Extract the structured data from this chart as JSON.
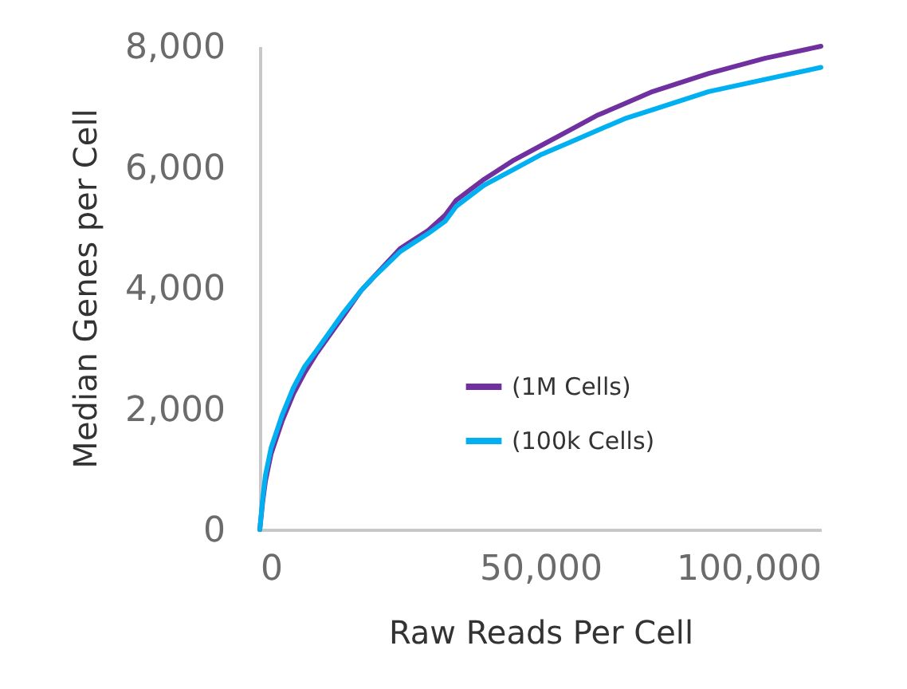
{
  "chart_data": {
    "type": "line",
    "xlabel": "Raw Reads Per Cell",
    "ylabel": "Median Genes per Cell",
    "x": [
      0,
      500,
      1000,
      2000,
      4000,
      6000,
      8000,
      10000,
      15000,
      18000,
      20000,
      25000,
      30000,
      33000,
      35000,
      40000,
      45000,
      50000,
      55000,
      60000,
      65000,
      70000,
      80000,
      90000,
      100000
    ],
    "series": [
      {
        "name": "(1M Cells)",
        "color": "#7030a0",
        "values": [
          0,
          450,
          800,
          1250,
          1800,
          2250,
          2600,
          2900,
          3550,
          3950,
          4150,
          4650,
          4950,
          5200,
          5450,
          5800,
          6100,
          6350,
          6600,
          6850,
          7050,
          7250,
          7550,
          7800,
          8000
        ]
      },
      {
        "name": "(100k Cells)",
        "color": "#00b0f0",
        "values": [
          0,
          500,
          900,
          1350,
          1900,
          2350,
          2700,
          2950,
          3600,
          3950,
          4150,
          4600,
          4900,
          5100,
          5350,
          5700,
          5950,
          6200,
          6400,
          6600,
          6800,
          6950,
          7250,
          7450,
          7650
        ]
      }
    ],
    "xlim": [
      0,
      100000
    ],
    "xticks": [
      0,
      {
        "value": 50000,
        "label": "50,000"
      },
      {
        "value": 100000,
        "label": "100,000"
      }
    ],
    "ylim": [
      0,
      8000
    ],
    "yticks": [
      0,
      {
        "value": 2000,
        "label": "2,000"
      },
      {
        "value": 4000,
        "label": "4,000"
      },
      {
        "value": 6000,
        "label": "6,000"
      },
      {
        "value": 8000,
        "label": "8,000"
      }
    ],
    "legend": "bottom right",
    "marker": "none",
    "line_style": "solid"
  }
}
